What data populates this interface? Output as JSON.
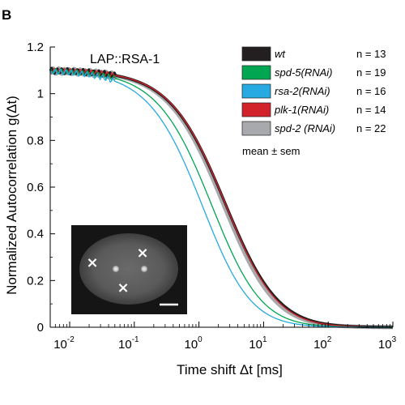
{
  "panel_label": "B",
  "chart_data": {
    "type": "line",
    "title": "LAP::RSA-1",
    "xlabel": "Time shift Δt [ms]",
    "ylabel": "Normalized Autocorrelation g(Δt)",
    "xscale": "log",
    "xlim": [
      0.005,
      1000
    ],
    "ylim": [
      0,
      1.2
    ],
    "x_ticks": [
      {
        "base": "10",
        "exp": "-2",
        "value": 0.01
      },
      {
        "base": "10",
        "exp": "-1",
        "value": 0.1
      },
      {
        "base": "10",
        "exp": "0",
        "value": 1
      },
      {
        "base": "10",
        "exp": "1",
        "value": 10
      },
      {
        "base": "10",
        "exp": "2",
        "value": 100
      },
      {
        "base": "10",
        "exp": "3",
        "value": 1000
      }
    ],
    "y_ticks": [
      "0",
      "0.2",
      "0.4",
      "0.6",
      "0.8",
      "1",
      "1.2"
    ],
    "y_tick_values": [
      0,
      0.2,
      0.4,
      0.6,
      0.8,
      1.0,
      1.2
    ],
    "series": [
      {
        "name": "wt",
        "n_label": "n = 13",
        "color": "#231f20",
        "g0": 1.1,
        "tau": 2.6,
        "w": 3.2
      },
      {
        "name": "spd-5(RNAi)",
        "n_label": "n = 19",
        "color": "#00a651",
        "g0": 1.1,
        "tau": 1.75,
        "w": 2.0
      },
      {
        "name": "rsa-2(RNAi)",
        "n_label": "n = 16",
        "color": "#27aae1",
        "g0": 1.1,
        "tau": 1.35,
        "w": 1.6
      },
      {
        "name": "plk-1(RNAi)",
        "n_label": "n = 14",
        "color": "#d2232a",
        "g0": 1.1,
        "tau": 2.7,
        "w": 2.6
      },
      {
        "name": "spd-2 (RNAi)",
        "n_label": "n = 22",
        "color": "#a7a9ac",
        "g0": 1.1,
        "tau": 2.5,
        "w": 2.6
      }
    ],
    "legend_note": "mean ± sem",
    "legend_position": "top-right",
    "grid": false
  },
  "inset": {
    "description_icon": "microscopy-embryo-inset",
    "markers": [
      "×",
      "×",
      "×"
    ]
  }
}
